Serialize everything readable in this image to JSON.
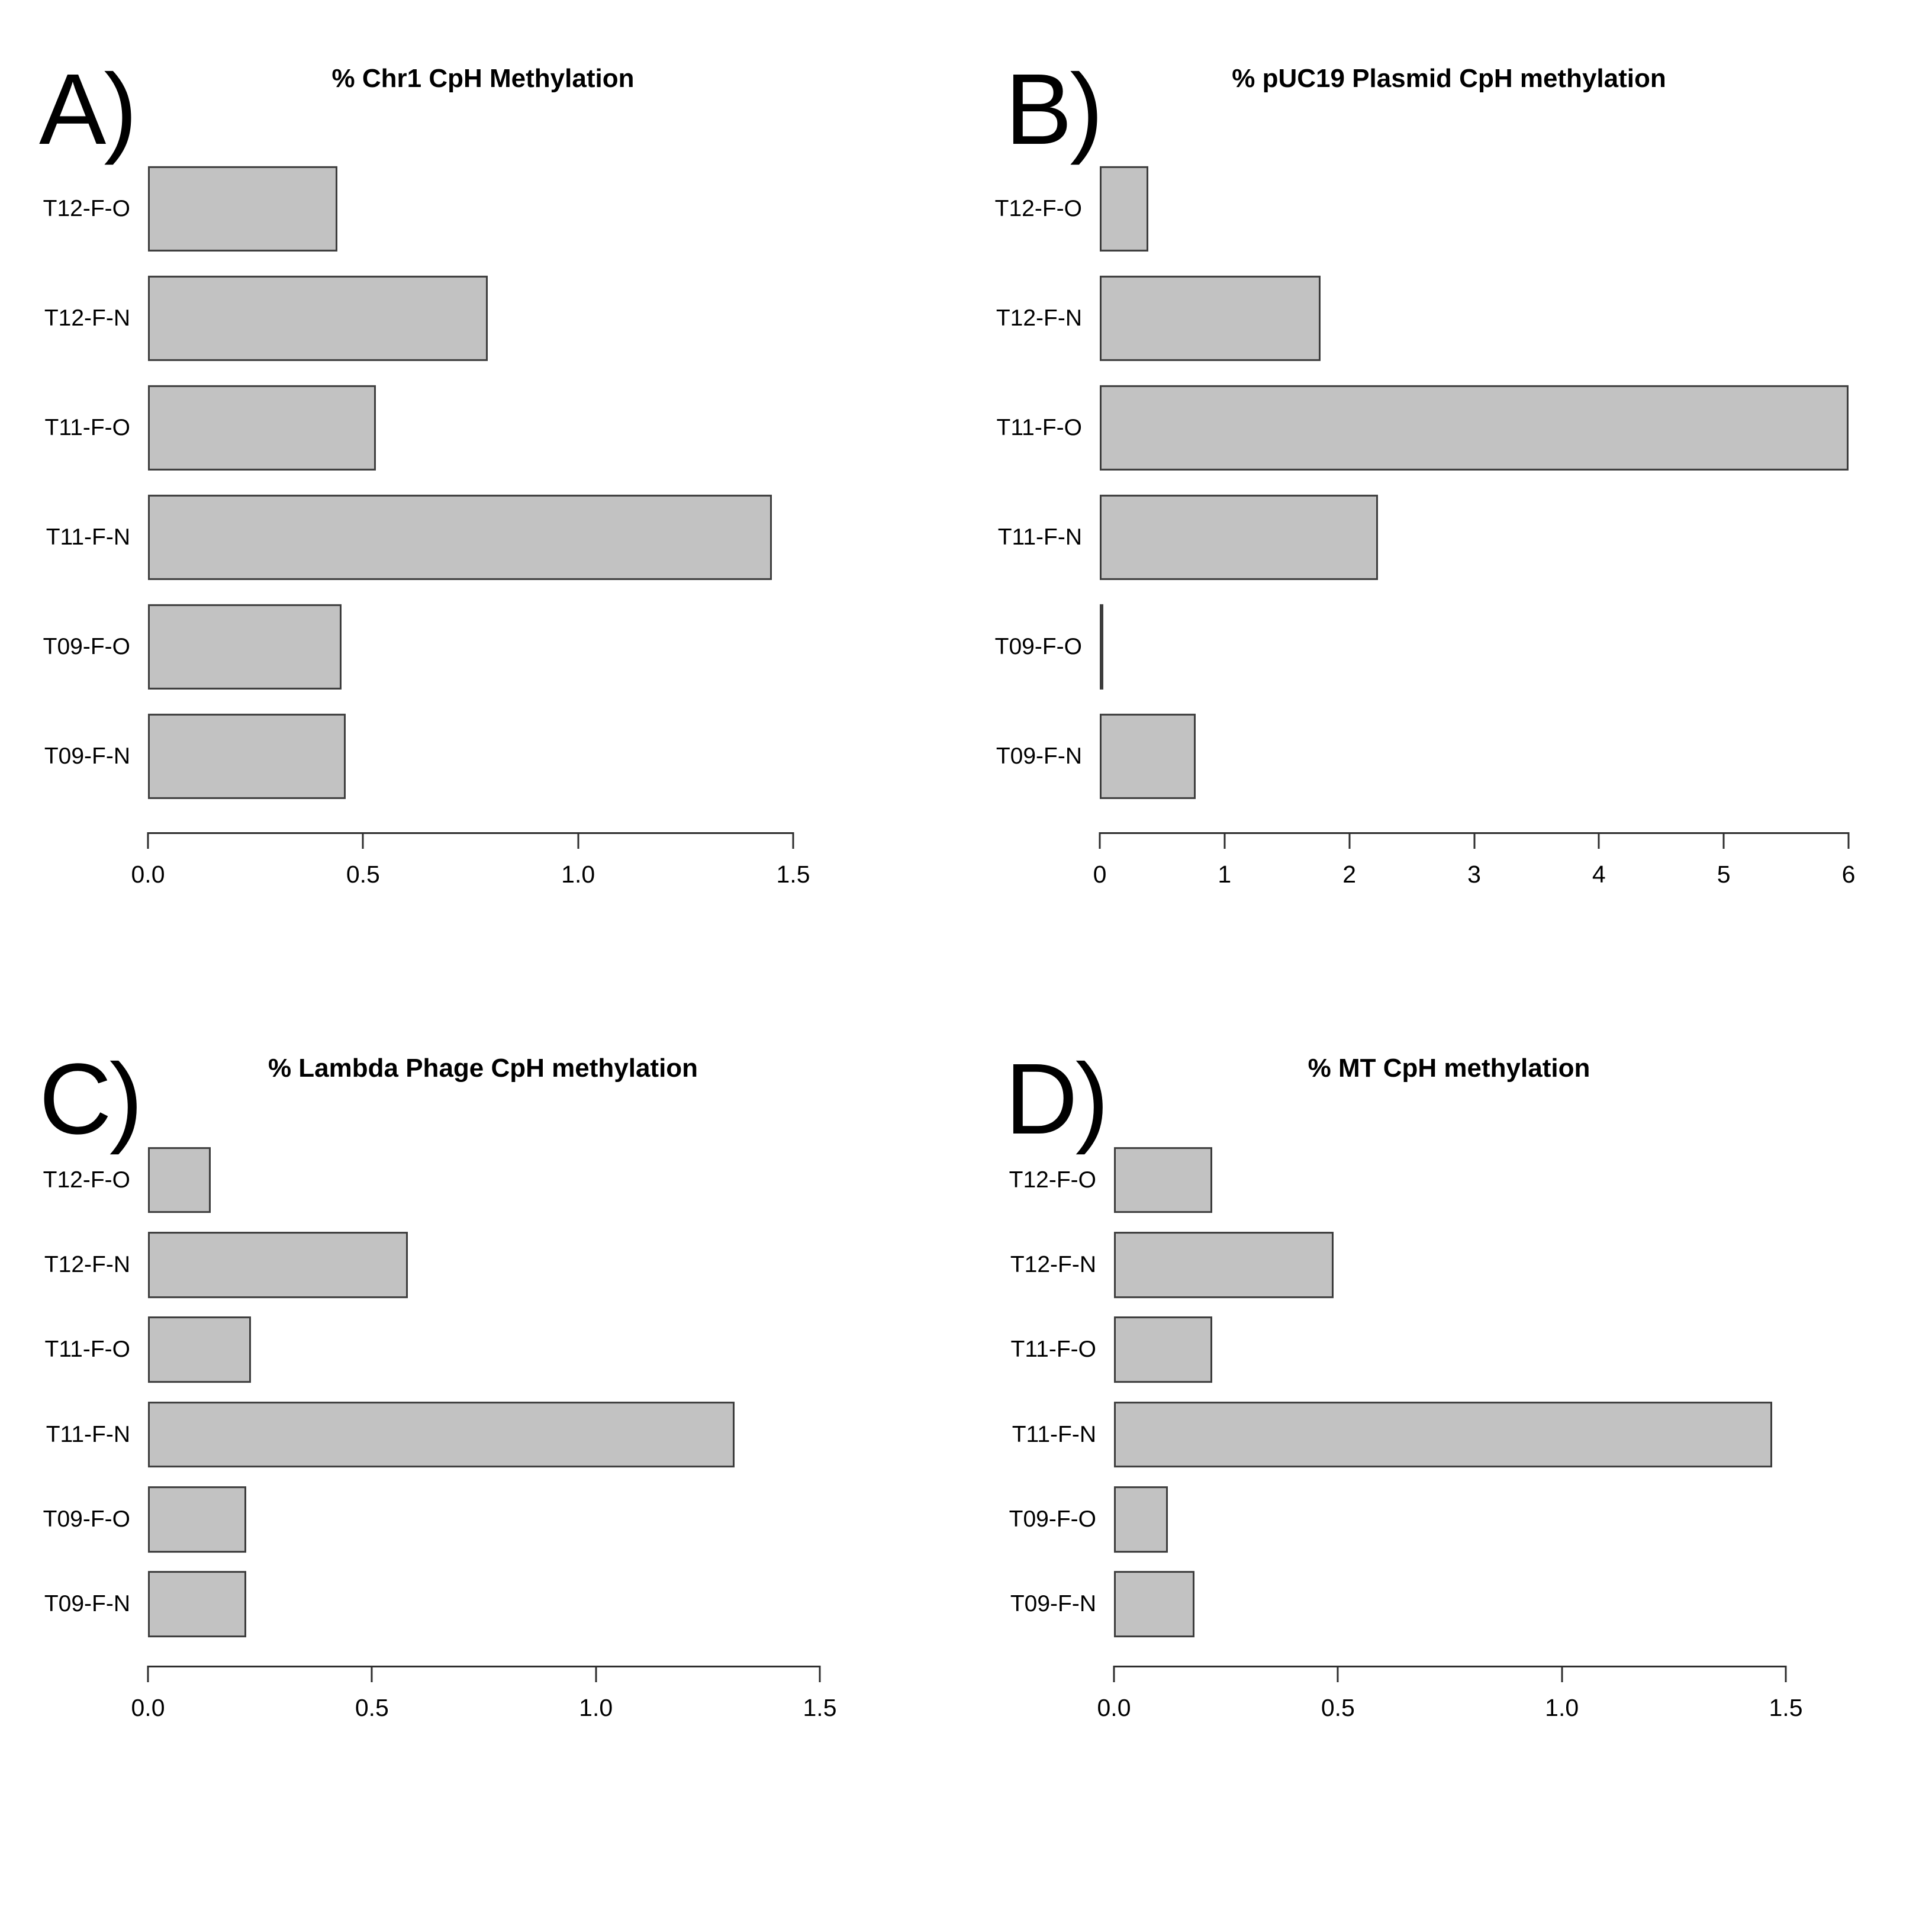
{
  "figure": {
    "background": "#ffffff"
  },
  "colors": {
    "bar_fill": "#c2c2c2",
    "bar_border": "#3d3d3d",
    "axis": "#2e2e2e",
    "text": "#000000"
  },
  "chart_data": [
    {
      "type": "bar",
      "orientation": "horizontal",
      "panel_label": "A)",
      "title": "% Chr1 CpH Methylation",
      "categories": [
        "T12-F-O",
        "T12-F-N",
        "T11-F-O",
        "T11-F-N",
        "T09-F-O",
        "T09-F-N"
      ],
      "values": [
        0.44,
        0.79,
        0.53,
        1.45,
        0.45,
        0.46
      ],
      "xlabel": "",
      "ylabel": "",
      "xlim": [
        0,
        1.5
      ],
      "xticks": [
        0,
        0.5,
        1.0,
        1.5
      ],
      "xtick_labels": [
        "0.0",
        "0.5",
        "1.0",
        "1.5"
      ],
      "grid": false,
      "legend": false
    },
    {
      "type": "bar",
      "orientation": "horizontal",
      "panel_label": "B)",
      "title": "% pUC19 Plasmid CpH methylation",
      "categories": [
        "T12-F-O",
        "T12-F-N",
        "T11-F-O",
        "T11-F-N",
        "T09-F-O",
        "T09-F-N"
      ],
      "values": [
        0.39,
        1.77,
        6.0,
        2.23,
        0.02,
        0.77
      ],
      "xlabel": "",
      "ylabel": "",
      "xlim": [
        0,
        6
      ],
      "xticks": [
        0,
        1,
        2,
        3,
        4,
        5,
        6
      ],
      "xtick_labels": [
        "0",
        "1",
        "2",
        "3",
        "4",
        "5",
        "6"
      ],
      "grid": false,
      "legend": false
    },
    {
      "type": "bar",
      "orientation": "horizontal",
      "panel_label": "C)",
      "title": "% Lambda Phage CpH methylation",
      "categories": [
        "T12-F-O",
        "T12-F-N",
        "T11-F-O",
        "T11-F-N",
        "T09-F-O",
        "T09-F-N"
      ],
      "values": [
        0.14,
        0.58,
        0.23,
        1.31,
        0.22,
        0.22
      ],
      "xlabel": "",
      "ylabel": "",
      "xlim": [
        0,
        1.5
      ],
      "xticks": [
        0,
        0.5,
        1.0,
        1.5
      ],
      "xtick_labels": [
        "0.0",
        "0.5",
        "1.0",
        "1.5"
      ],
      "grid": false,
      "legend": false
    },
    {
      "type": "bar",
      "orientation": "horizontal",
      "panel_label": "D)",
      "title": "% MT CpH methylation",
      "categories": [
        "T12-F-O",
        "T12-F-N",
        "T11-F-O",
        "T11-F-N",
        "T09-F-O",
        "T09-F-N"
      ],
      "values": [
        0.22,
        0.49,
        0.22,
        1.47,
        0.12,
        0.18
      ],
      "xlabel": "",
      "ylabel": "",
      "xlim": [
        0,
        1.5
      ],
      "xticks": [
        0,
        0.5,
        1.0,
        1.5
      ],
      "xtick_labels": [
        "0.0",
        "0.5",
        "1.0",
        "1.5"
      ],
      "grid": false,
      "legend": false
    }
  ]
}
